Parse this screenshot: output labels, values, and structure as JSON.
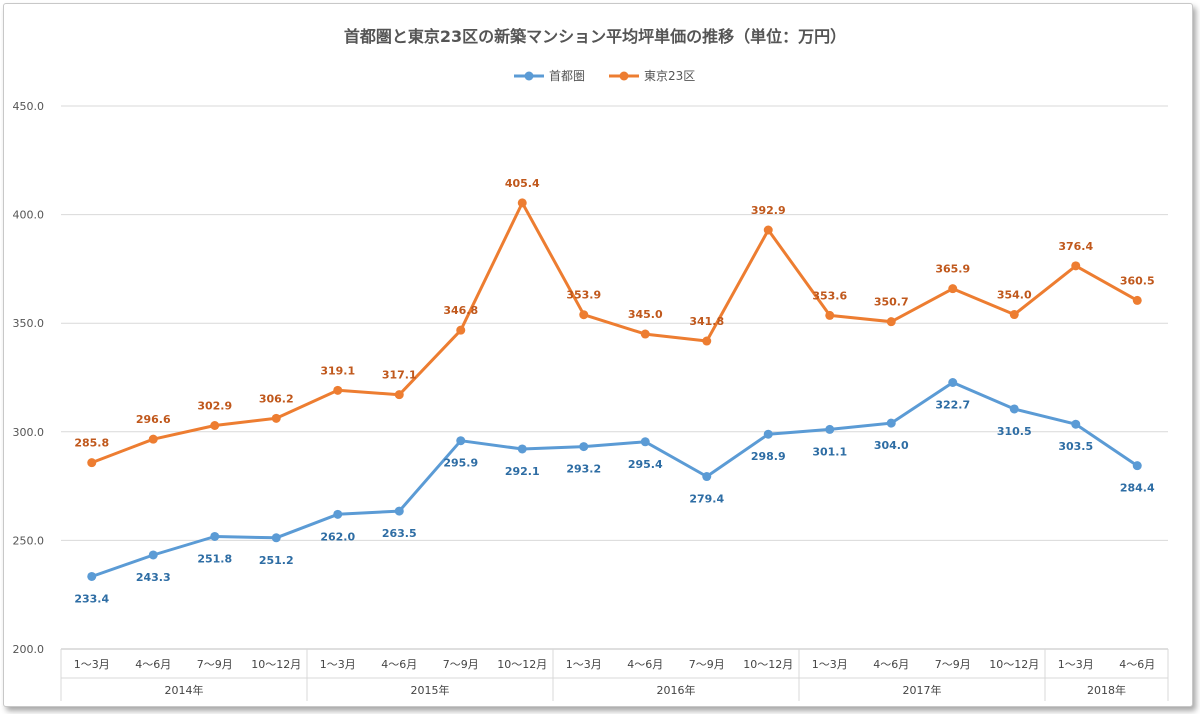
{
  "chart_data": {
    "type": "line",
    "title": "首都圏と東京23区の新築マンション平均坪単価の推移（単位：万円）",
    "ylim": [
      200,
      450
    ],
    "yticks": [
      "200.0",
      "250.0",
      "300.0",
      "350.0",
      "400.0",
      "450.0"
    ],
    "grid": true,
    "legend_position": "top-center",
    "categories": [
      "1～3月",
      "4～6月",
      "7～9月",
      "10～12月",
      "1～3月",
      "4～6月",
      "7～9月",
      "10～12月",
      "1～3月",
      "4～6月",
      "7～9月",
      "10～12月",
      "1～3月",
      "4～6月",
      "7～9月",
      "10～12月",
      "1～3月",
      "4～6月"
    ],
    "years": [
      {
        "label": "2014年",
        "count": 4
      },
      {
        "label": "2015年",
        "count": 4
      },
      {
        "label": "2016年",
        "count": 4
      },
      {
        "label": "2017年",
        "count": 4
      },
      {
        "label": "2018年",
        "count": 2
      }
    ],
    "series": [
      {
        "name": "首都圏",
        "color": "#5b9bd5",
        "label_color": "#2e6da4",
        "label_pos": "below",
        "values": [
          233.4,
          243.3,
          251.8,
          251.2,
          262.0,
          263.5,
          295.9,
          292.1,
          293.2,
          295.4,
          279.4,
          298.9,
          301.1,
          304.0,
          322.7,
          310.5,
          303.5,
          284.4
        ]
      },
      {
        "name": "東京23区",
        "color": "#ed7d31",
        "label_color": "#c0581c",
        "label_pos": "above",
        "values": [
          285.8,
          296.6,
          302.9,
          306.2,
          319.1,
          317.1,
          346.8,
          405.4,
          353.9,
          345.0,
          341.8,
          392.9,
          353.6,
          350.7,
          365.9,
          354.0,
          376.4,
          360.5
        ]
      }
    ]
  }
}
